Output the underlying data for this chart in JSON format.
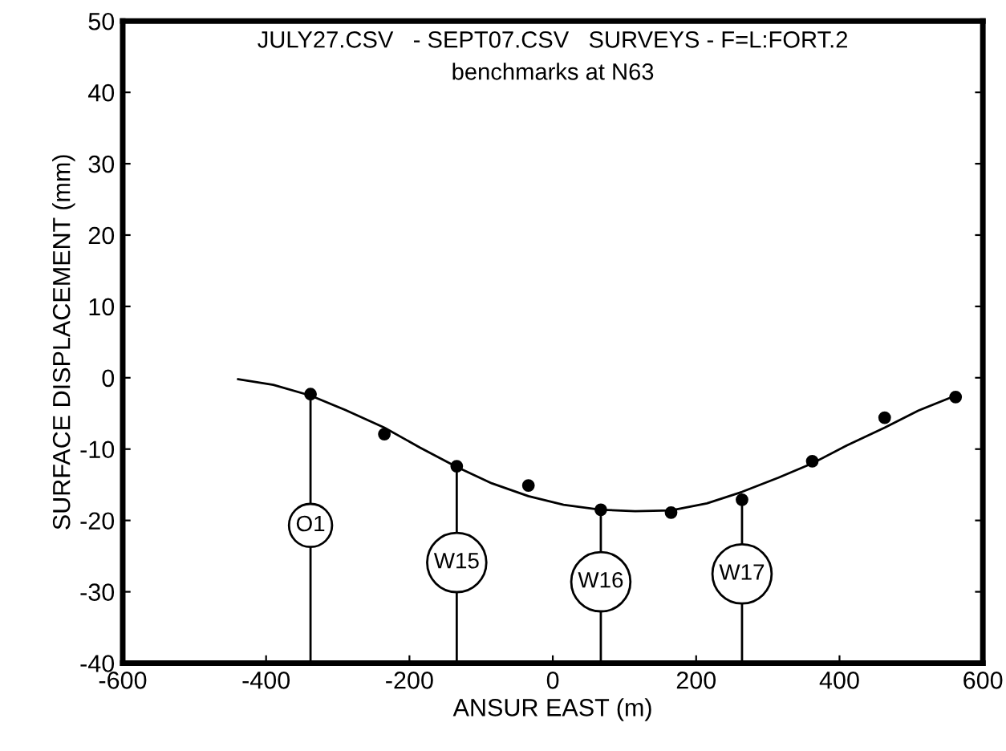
{
  "chart_data": {
    "type": "scatter",
    "title": "JULY27.CSV   - SEPT07.CSV   SURVEYS - F=L:FORT.2",
    "subtitle": "benchmarks at N63",
    "xlabel": "ANSUR EAST (m)",
    "ylabel": "SURFACE DISPLACEMENT (mm)",
    "x": [
      -338,
      -235,
      -134,
      -34,
      67,
      165,
      264,
      362,
      463,
      562
    ],
    "series": [
      {
        "color": "#000000",
        "marker": "circle",
        "values": [
          -2.3,
          -7.9,
          -12.4,
          -15.1,
          -18.5,
          -18.9,
          -17.1,
          -11.7,
          -5.6,
          -2.7
        ]
      },
      {
        "type": "line",
        "color": "#000000",
        "marker": "none",
        "line_style": "solid",
        "x": [
          -439,
          -390,
          -338,
          -290,
          -235,
          -185,
          -134,
          -85,
          -34,
          15,
          67,
          115,
          165,
          215,
          264,
          315,
          362,
          410,
          463,
          510,
          562
        ],
        "values": [
          -0.2,
          -1.0,
          -2.5,
          -4.5,
          -7.0,
          -9.8,
          -12.5,
          -14.8,
          -16.6,
          -17.8,
          -18.5,
          -18.7,
          -18.6,
          -17.6,
          -16.0,
          -14.0,
          -12.0,
          -9.5,
          -7.0,
          -4.6,
          -2.5
        ]
      }
    ],
    "annotations": [
      {
        "text": "O1",
        "x": -338,
        "y": -20.7
      },
      {
        "text": "W15",
        "x": -134,
        "y": -25.9
      },
      {
        "text": "W16",
        "x": 67,
        "y": -28.6
      },
      {
        "text": "W17",
        "x": 264,
        "y": -27.5
      }
    ],
    "xlim": [
      -600,
      600
    ],
    "ylim": [
      -40,
      50
    ],
    "xticks": [
      -600,
      -400,
      -200,
      0,
      200,
      400,
      600
    ],
    "yticks": [
      -40,
      -30,
      -20,
      -10,
      0,
      10,
      20,
      30,
      40,
      50
    ],
    "grid": false,
    "legend": false
  }
}
